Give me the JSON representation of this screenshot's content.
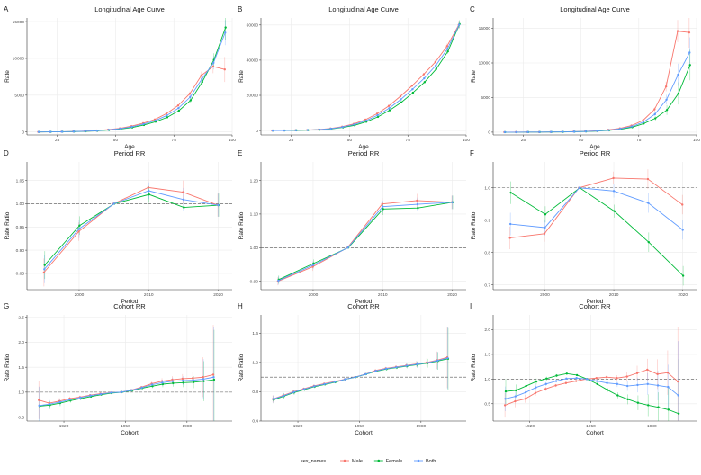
{
  "legend": {
    "title": "sex_names",
    "items": [
      {
        "name": "Male",
        "color": "#F8766D"
      },
      {
        "name": "Female",
        "color": "#00BA38"
      },
      {
        "name": "Both",
        "color": "#619CFF"
      }
    ]
  },
  "chart_data": [
    {
      "id": "A",
      "type": "line",
      "title": "Longitudinal Age Curve",
      "xlabel": "Age",
      "ylabel": "Rate",
      "xlim": [
        12,
        100
      ],
      "ylim": [
        -400,
        15500
      ],
      "xticks": [
        25,
        50,
        75,
        100
      ],
      "xticklabels": [
        "25",
        "50",
        "75",
        "100"
      ],
      "yticks": [
        0,
        5000,
        10000,
        15000
      ],
      "yticklabels": [
        "0",
        "5000",
        "10000",
        "15000"
      ],
      "x": [
        17,
        22,
        27,
        32,
        37,
        42,
        47,
        52,
        57,
        62,
        67,
        72,
        77,
        82,
        87,
        92,
        97
      ],
      "series": [
        {
          "name": "Male",
          "values": [
            10,
            20,
            40,
            70,
            120,
            200,
            320,
            500,
            800,
            1200,
            1700,
            2500,
            3600,
            5200,
            7700,
            8900,
            8500
          ]
        },
        {
          "name": "Female",
          "values": [
            8,
            15,
            30,
            55,
            95,
            160,
            260,
            400,
            620,
            950,
            1400,
            2000,
            2900,
            4300,
            6800,
            9800,
            14200
          ]
        },
        {
          "name": "Both",
          "values": [
            9,
            17,
            35,
            62,
            108,
            180,
            290,
            450,
            710,
            1080,
            1550,
            2250,
            3250,
            4750,
            7200,
            9400,
            13500
          ]
        }
      ],
      "ci": [
        0,
        0,
        0,
        0,
        0,
        0,
        0,
        0,
        0,
        0,
        0,
        0,
        0,
        300,
        500,
        900,
        1700
      ]
    },
    {
      "id": "B",
      "type": "line",
      "title": "Longitudinal Age Curve",
      "xlabel": "Age",
      "ylabel": "Rate",
      "xlim": [
        12,
        100
      ],
      "ylim": [
        -2500,
        64000
      ],
      "xticks": [
        25,
        50,
        75,
        100
      ],
      "xticklabels": [
        "25",
        "50",
        "75",
        "100"
      ],
      "yticks": [
        0,
        20000,
        40000,
        60000
      ],
      "yticklabels": [
        "0",
        "20000",
        "40000",
        "60000"
      ],
      "x": [
        17,
        22,
        27,
        32,
        37,
        42,
        47,
        52,
        57,
        62,
        67,
        72,
        77,
        82,
        87,
        92,
        97
      ],
      "series": [
        {
          "name": "Male",
          "values": [
            0,
            50,
            150,
            300,
            600,
            1200,
            2200,
            3800,
            6200,
            9600,
            14000,
            19500,
            25500,
            32000,
            39000,
            48000,
            60000
          ]
        },
        {
          "name": "Female",
          "values": [
            0,
            40,
            120,
            250,
            480,
            950,
            1800,
            3000,
            5000,
            7800,
            11500,
            16000,
            21500,
            27500,
            35000,
            45000,
            60500
          ]
        },
        {
          "name": "Both",
          "values": [
            0,
            45,
            135,
            275,
            540,
            1070,
            2000,
            3400,
            5600,
            8700,
            12700,
            17700,
            23500,
            29700,
            37000,
            46500,
            60200
          ]
        }
      ],
      "ci": [
        0,
        0,
        0,
        0,
        0,
        0,
        0,
        0,
        0,
        0,
        0,
        0,
        0,
        600,
        900,
        1400,
        2200
      ]
    },
    {
      "id": "C",
      "type": "line",
      "title": "Longitudinal Age Curve",
      "xlabel": "Age",
      "ylabel": "Rate",
      "xlim": [
        12,
        100
      ],
      "ylim": [
        -400,
        16500
      ],
      "xticks": [
        25,
        50,
        75,
        100
      ],
      "xticklabels": [
        "25",
        "50",
        "75",
        "100"
      ],
      "yticks": [
        0,
        5000,
        10000,
        15000
      ],
      "yticklabels": [
        "0",
        "5000",
        "10000",
        "15000"
      ],
      "x": [
        17,
        22,
        27,
        32,
        37,
        42,
        47,
        52,
        57,
        62,
        67,
        72,
        77,
        82,
        87,
        92,
        97
      ],
      "series": [
        {
          "name": "Male",
          "values": [
            0,
            5,
            10,
            20,
            30,
            50,
            80,
            130,
            200,
            330,
            550,
            950,
            1700,
            3300,
            6600,
            14600,
            14400
          ]
        },
        {
          "name": "Female",
          "values": [
            0,
            4,
            8,
            15,
            25,
            40,
            65,
            100,
            160,
            260,
            430,
            720,
            1250,
            2000,
            3200,
            5600,
            9700
          ]
        },
        {
          "name": "Both",
          "values": [
            0,
            4,
            9,
            17,
            27,
            45,
            72,
            115,
            180,
            290,
            490,
            830,
            1450,
            2600,
            4700,
            8300,
            11500
          ]
        }
      ],
      "ci": [
        0,
        0,
        0,
        0,
        0,
        0,
        0,
        0,
        0,
        0,
        0,
        0,
        150,
        300,
        700,
        1600,
        2200
      ]
    },
    {
      "id": "D",
      "type": "line",
      "title": "Period RR",
      "xlabel": "Period",
      "ylabel": "Rate Ratio",
      "xlim": [
        1992.5,
        2022
      ],
      "ylim": [
        0.815,
        1.09
      ],
      "ref": 1,
      "xticks": [
        2000,
        2010,
        2020
      ],
      "xticklabels": [
        "2000",
        "2010",
        "2020"
      ],
      "yticks": [
        0.85,
        0.9,
        0.95,
        1.0,
        1.05
      ],
      "yticklabels": [
        "0.85",
        "0.90",
        "0.95",
        "1.00",
        "1.05"
      ],
      "x": [
        1995,
        2000,
        2005,
        2010,
        2015,
        2020
      ],
      "series": [
        {
          "name": "Male",
          "values": [
            0.852,
            0.94,
            1.0,
            1.035,
            1.025,
            0.997
          ]
        },
        {
          "name": "Female",
          "values": [
            0.868,
            0.953,
            1.0,
            1.02,
            0.992,
            0.997
          ]
        },
        {
          "name": "Both",
          "values": [
            0.859,
            0.946,
            1.0,
            1.028,
            1.009,
            0.997
          ]
        }
      ],
      "ci": [
        0.03,
        0.02,
        0,
        0.018,
        0.025,
        0.025
      ]
    },
    {
      "id": "E",
      "type": "line",
      "title": "Period RR",
      "xlabel": "Period",
      "ylabel": "Rate Ratio",
      "xlim": [
        1992.5,
        2022
      ],
      "ylim": [
        0.875,
        1.255
      ],
      "ref": 1,
      "xticks": [
        2000,
        2010,
        2020
      ],
      "xticklabels": [
        "2000",
        "2010",
        "2020"
      ],
      "yticks": [
        0.9,
        1.0,
        1.1,
        1.2
      ],
      "yticklabels": [
        "0.90",
        "1.00",
        "1.10",
        "1.20"
      ],
      "x": [
        1995,
        2000,
        2005,
        2010,
        2015,
        2020
      ],
      "series": [
        {
          "name": "Male",
          "values": [
            0.9,
            0.943,
            1.0,
            1.13,
            1.14,
            1.135
          ]
        },
        {
          "name": "Female",
          "values": [
            0.905,
            0.953,
            1.0,
            1.115,
            1.118,
            1.135
          ]
        },
        {
          "name": "Both",
          "values": [
            0.902,
            0.948,
            1.0,
            1.122,
            1.129,
            1.135
          ]
        }
      ],
      "ci": [
        0.012,
        0.012,
        0,
        0.018,
        0.02,
        0.02
      ]
    },
    {
      "id": "F",
      "type": "line",
      "title": "Period RR",
      "xlabel": "Period",
      "ylabel": "Rate Ratio",
      "xlim": [
        1992.5,
        2022
      ],
      "ylim": [
        0.685,
        1.08
      ],
      "ref": 1,
      "xticks": [
        2000,
        2010,
        2020
      ],
      "xticklabels": [
        "2000",
        "2010",
        "2020"
      ],
      "yticks": [
        0.7,
        0.8,
        0.9,
        1.0
      ],
      "yticklabels": [
        "0.7",
        "0.8",
        "0.9",
        "1.0"
      ],
      "x": [
        1995,
        2000,
        2005,
        2010,
        2015,
        2020
      ],
      "series": [
        {
          "name": "Male",
          "values": [
            0.845,
            0.858,
            1.0,
            1.03,
            1.027,
            0.948
          ]
        },
        {
          "name": "Female",
          "values": [
            0.985,
            0.918,
            1.0,
            0.928,
            0.832,
            0.728
          ]
        },
        {
          "name": "Both",
          "values": [
            0.888,
            0.877,
            1.0,
            0.99,
            0.953,
            0.87
          ]
        }
      ],
      "ci": [
        0.035,
        0.025,
        0,
        0.02,
        0.03,
        0.03
      ]
    },
    {
      "id": "G",
      "type": "line",
      "title": "Cohort RR",
      "xlabel": "Cohort",
      "ylabel": "Rate Ratio",
      "xlim": [
        1902,
        2002
      ],
      "ylim": [
        0.42,
        2.55
      ],
      "ref": 1,
      "xticks": [
        1920,
        1950,
        1980
      ],
      "xticklabels": [
        "1920",
        "1950",
        "1980"
      ],
      "yticks": [
        0.5,
        1.0,
        1.5,
        2.0,
        2.5
      ],
      "yticklabels": [
        "0.5",
        "1.0",
        "1.5",
        "2.0",
        "2.5"
      ],
      "x": [
        1908,
        1913,
        1918,
        1923,
        1928,
        1933,
        1938,
        1943,
        1948,
        1953,
        1958,
        1963,
        1968,
        1973,
        1978,
        1983,
        1988,
        1993
      ],
      "series": [
        {
          "name": "Male",
          "values": [
            0.84,
            0.78,
            0.82,
            0.87,
            0.9,
            0.94,
            0.97,
            0.99,
            1.0,
            1.04,
            1.1,
            1.17,
            1.22,
            1.25,
            1.27,
            1.28,
            1.3,
            1.35
          ]
        },
        {
          "name": "Female",
          "values": [
            0.72,
            0.74,
            0.78,
            0.83,
            0.87,
            0.91,
            0.95,
            0.98,
            1.0,
            1.03,
            1.08,
            1.12,
            1.16,
            1.18,
            1.19,
            1.2,
            1.22,
            1.25
          ]
        },
        {
          "name": "Both",
          "values": [
            0.73,
            0.76,
            0.8,
            0.85,
            0.89,
            0.93,
            0.96,
            0.99,
            1.0,
            1.04,
            1.09,
            1.15,
            1.19,
            1.22,
            1.23,
            1.24,
            1.26,
            1.3
          ]
        }
      ],
      "ci": [
        0.38,
        0.08,
        0.06,
        0.04,
        0.03,
        0.02,
        0.01,
        0.01,
        0,
        0.01,
        0.02,
        0.04,
        0.06,
        0.07,
        0.09,
        0.12,
        0.4,
        1.0
      ]
    },
    {
      "id": "H",
      "type": "line",
      "title": "Cohort RR",
      "xlabel": "Cohort",
      "ylabel": "Rate Ratio",
      "xlim": [
        1902,
        2002
      ],
      "ylim": [
        0.4,
        1.85
      ],
      "ref": 1,
      "xticks": [
        1920,
        1950,
        1980
      ],
      "xticklabels": [
        "1920",
        "1950",
        "1980"
      ],
      "yticks": [
        0.4,
        0.8,
        1.2,
        1.6
      ],
      "yticklabels": [
        "0.4",
        "0.8",
        "1.2",
        "1.6"
      ],
      "x": [
        1908,
        1913,
        1918,
        1923,
        1928,
        1933,
        1938,
        1943,
        1948,
        1953,
        1958,
        1963,
        1968,
        1973,
        1978,
        1983,
        1988,
        1993
      ],
      "series": [
        {
          "name": "Male",
          "values": [
            0.7,
            0.75,
            0.8,
            0.84,
            0.88,
            0.91,
            0.94,
            0.97,
            1.0,
            1.04,
            1.09,
            1.12,
            1.14,
            1.16,
            1.18,
            1.2,
            1.23,
            1.27
          ]
        },
        {
          "name": "Female",
          "values": [
            0.69,
            0.74,
            0.79,
            0.83,
            0.87,
            0.9,
            0.93,
            0.97,
            1.0,
            1.04,
            1.08,
            1.11,
            1.13,
            1.15,
            1.17,
            1.19,
            1.22,
            1.25
          ]
        },
        {
          "name": "Both",
          "values": [
            0.7,
            0.745,
            0.795,
            0.835,
            0.875,
            0.905,
            0.935,
            0.97,
            1.0,
            1.04,
            1.085,
            1.115,
            1.135,
            1.155,
            1.175,
            1.195,
            1.225,
            1.26
          ]
        }
      ],
      "ci": [
        0.05,
        0.04,
        0.03,
        0.02,
        0.02,
        0.01,
        0.01,
        0.01,
        0,
        0.01,
        0.01,
        0.02,
        0.02,
        0.03,
        0.04,
        0.06,
        0.12,
        0.42
      ]
    },
    {
      "id": "I",
      "type": "line",
      "title": "Cohort RR",
      "xlabel": "Cohort",
      "ylabel": "Rate Ratio",
      "xlim": [
        1902,
        2002
      ],
      "ylim": [
        0.15,
        2.3
      ],
      "ref": 1,
      "xticks": [
        1920,
        1950,
        1980
      ],
      "xticklabels": [
        "1920",
        "1950",
        "1980"
      ],
      "yticks": [
        0.5,
        1.0,
        1.5,
        2.0
      ],
      "yticklabels": [
        "0.5",
        "1.0",
        "1.5",
        "2.0"
      ],
      "x": [
        1908,
        1913,
        1918,
        1923,
        1928,
        1933,
        1938,
        1943,
        1948,
        1953,
        1958,
        1963,
        1968,
        1973,
        1978,
        1983,
        1988,
        1993
      ],
      "series": [
        {
          "name": "Male",
          "values": [
            0.47,
            0.55,
            0.6,
            0.72,
            0.8,
            0.87,
            0.92,
            0.96,
            1.0,
            1.02,
            1.04,
            1.02,
            1.05,
            1.12,
            1.19,
            1.1,
            1.13,
            0.95
          ]
        },
        {
          "name": "Female",
          "values": [
            0.75,
            0.77,
            0.86,
            0.95,
            1.01,
            1.07,
            1.11,
            1.08,
            1.0,
            0.9,
            0.78,
            0.67,
            0.59,
            0.52,
            0.47,
            0.43,
            0.38,
            0.3
          ]
        },
        {
          "name": "Both",
          "values": [
            0.6,
            0.65,
            0.73,
            0.83,
            0.9,
            0.96,
            1.01,
            1.02,
            1.0,
            0.96,
            0.92,
            0.9,
            0.86,
            0.88,
            0.9,
            0.87,
            0.84,
            0.67
          ]
        }
      ],
      "ci": [
        0.25,
        0.12,
        0.08,
        0.06,
        0.04,
        0.03,
        0.02,
        0.01,
        0,
        0.02,
        0.04,
        0.06,
        0.1,
        0.15,
        0.22,
        0.3,
        0.45,
        1.1
      ]
    }
  ]
}
